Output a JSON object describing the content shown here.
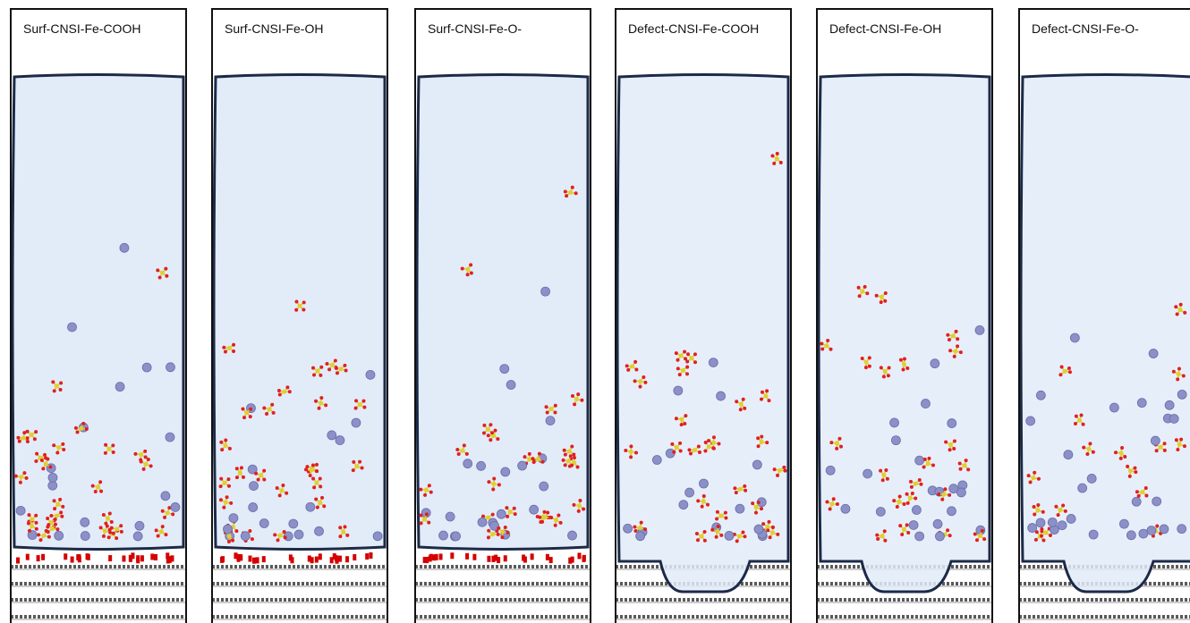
{
  "panels": [
    {
      "label": "Surf-CNSI-Fe-COOH",
      "kind": "surf"
    },
    {
      "label": "Surf-CNSI-Fe-OH",
      "kind": "surf"
    },
    {
      "label": "Surf-CNSI-Fe-O-",
      "kind": "surf"
    },
    {
      "label": "Defect-CNSI-Fe-COOH",
      "kind": "defect"
    },
    {
      "label": "Defect-CNSI-Fe-OH",
      "kind": "defect"
    },
    {
      "label": "Defect-CNSI-Fe-O-",
      "kind": "defect"
    }
  ]
}
